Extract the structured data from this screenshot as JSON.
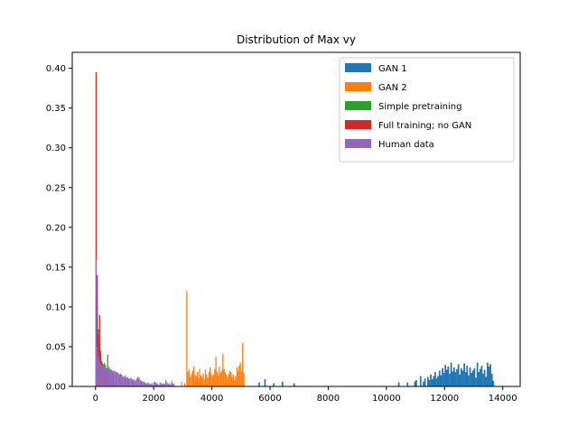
{
  "chart_data": {
    "type": "bar",
    "title": "Distribution of Max vy",
    "xlabel": "",
    "ylabel": "",
    "xlim": [
      -800,
      14600
    ],
    "ylim": [
      0,
      0.42
    ],
    "x_ticks": [
      0,
      2000,
      4000,
      6000,
      8000,
      10000,
      12000,
      14000
    ],
    "x_tick_labels": [
      "0",
      "2000",
      "4000",
      "6000",
      "8000",
      "10000",
      "12000",
      "14000"
    ],
    "y_ticks": [
      0.0,
      0.05,
      0.1,
      0.15,
      0.2,
      0.25,
      0.3,
      0.35,
      0.4
    ],
    "y_tick_labels": [
      "0.00",
      "0.05",
      "0.10",
      "0.15",
      "0.20",
      "0.25",
      "0.30",
      "0.35",
      "0.40"
    ],
    "grid": false,
    "legend_position": "top-right",
    "series": [
      {
        "name": "GAN 1",
        "color": "#1f77b4",
        "bin_width": 55,
        "x": [
          5600,
          5800,
          6100,
          6400,
          6800,
          10400,
          10700,
          10950,
          11000,
          11150,
          11250,
          11300,
          11400,
          11450,
          11500,
          11550,
          11600,
          11650,
          11700,
          11750,
          11800,
          11850,
          11900,
          11950,
          12000,
          12050,
          12100,
          12150,
          12200,
          12250,
          12300,
          12350,
          12400,
          12450,
          12500,
          12550,
          12600,
          12650,
          12700,
          12750,
          12800,
          12850,
          12900,
          12950,
          13000,
          13050,
          13100,
          13150,
          13200,
          13250,
          13300,
          13350,
          13400,
          13450,
          13500,
          13550,
          13600,
          13650
        ],
        "values": [
          0.005,
          0.009,
          0.004,
          0.006,
          0.004,
          0.005,
          0.005,
          0.006,
          0.008,
          0.013,
          0.006,
          0.01,
          0.012,
          0.008,
          0.015,
          0.009,
          0.013,
          0.018,
          0.01,
          0.013,
          0.02,
          0.014,
          0.023,
          0.017,
          0.027,
          0.021,
          0.025,
          0.016,
          0.03,
          0.019,
          0.024,
          0.018,
          0.022,
          0.028,
          0.015,
          0.023,
          0.02,
          0.029,
          0.018,
          0.026,
          0.014,
          0.024,
          0.017,
          0.02,
          0.023,
          0.011,
          0.03,
          0.018,
          0.022,
          0.026,
          0.016,
          0.021,
          0.012,
          0.03,
          0.025,
          0.028,
          0.016,
          0.007
        ]
      },
      {
        "name": "GAN 2",
        "color": "#ff7f0e",
        "bin_width": 40,
        "x": [
          2950,
          3050,
          3120,
          3160,
          3200,
          3240,
          3280,
          3320,
          3360,
          3400,
          3440,
          3480,
          3520,
          3560,
          3600,
          3640,
          3680,
          3720,
          3760,
          3800,
          3840,
          3880,
          3920,
          3960,
          4000,
          4040,
          4080,
          4120,
          4160,
          4200,
          4240,
          4280,
          4320,
          4360,
          4400,
          4440,
          4480,
          4520,
          4560,
          4600,
          4640,
          4680,
          4720,
          4760,
          4800,
          4840,
          4880,
          4920,
          4960,
          5000,
          5040,
          5080
        ],
        "values": [
          0.006,
          0.004,
          0.12,
          0.018,
          0.022,
          0.012,
          0.016,
          0.02,
          0.025,
          0.015,
          0.013,
          0.018,
          0.01,
          0.022,
          0.014,
          0.012,
          0.016,
          0.009,
          0.021,
          0.015,
          0.011,
          0.018,
          0.024,
          0.016,
          0.013,
          0.015,
          0.022,
          0.037,
          0.018,
          0.014,
          0.025,
          0.017,
          0.02,
          0.041,
          0.022,
          0.018,
          0.015,
          0.012,
          0.016,
          0.02,
          0.018,
          0.012,
          0.015,
          0.008,
          0.013,
          0.024,
          0.019,
          0.026,
          0.03,
          0.019,
          0.055,
          0.017
        ]
      },
      {
        "name": "Simple pretraining",
        "color": "#2ca02c",
        "bin_width": 40,
        "x": [
          0,
          40,
          80,
          120,
          160,
          200,
          240,
          280,
          320,
          360,
          400,
          440,
          480,
          520,
          600,
          700,
          800,
          900,
          1000,
          1100,
          1200
        ],
        "values": [
          0.11,
          0.09,
          0.072,
          0.055,
          0.045,
          0.032,
          0.028,
          0.03,
          0.027,
          0.022,
          0.04,
          0.024,
          0.021,
          0.02,
          0.018,
          0.016,
          0.015,
          0.012,
          0.01,
          0.008,
          0.006
        ]
      },
      {
        "name": "Full training; no GAN",
        "color": "#d62728",
        "bin_width": 40,
        "x": [
          0,
          40,
          80,
          120,
          160,
          200,
          240,
          280,
          320,
          360
        ],
        "values": [
          0.395,
          0.14,
          0.065,
          0.09,
          0.04,
          0.03,
          0.022,
          0.018,
          0.015,
          0.01
        ]
      },
      {
        "name": "Human data",
        "color": "#9467bd",
        "bin_width": 40,
        "x": [
          0,
          40,
          80,
          120,
          160,
          200,
          240,
          280,
          320,
          360,
          400,
          440,
          480,
          520,
          560,
          600,
          640,
          680,
          720,
          760,
          800,
          840,
          880,
          920,
          960,
          1000,
          1040,
          1080,
          1120,
          1160,
          1200,
          1240,
          1280,
          1320,
          1360,
          1400,
          1440,
          1480,
          1520,
          1560,
          1600,
          1640,
          1680,
          1720,
          1760,
          1800,
          1840,
          1880,
          1920,
          1960,
          2000,
          2040,
          2080,
          2120,
          2160,
          2200,
          2240,
          2280,
          2320,
          2360,
          2400,
          2440,
          2480,
          2520,
          2560,
          2600,
          2640,
          2680
        ],
        "values": [
          0.16,
          0.05,
          0.038,
          0.032,
          0.028,
          0.026,
          0.025,
          0.024,
          0.024,
          0.023,
          0.022,
          0.021,
          0.022,
          0.021,
          0.02,
          0.019,
          0.02,
          0.018,
          0.018,
          0.017,
          0.015,
          0.016,
          0.015,
          0.013,
          0.012,
          0.014,
          0.011,
          0.012,
          0.01,
          0.01,
          0.011,
          0.009,
          0.008,
          0.009,
          0.007,
          0.01,
          0.012,
          0.011,
          0.008,
          0.007,
          0.006,
          0.006,
          0.005,
          0.004,
          0.004,
          0.005,
          0.003,
          0.003,
          0.004,
          0.002,
          0.006,
          0.005,
          0.004,
          0.003,
          0.002,
          0.005,
          0.004,
          0.003,
          0.004,
          0.003,
          0.008,
          0.005,
          0.003,
          0.004,
          0.002,
          0.007,
          0.004,
          0.003
        ]
      }
    ]
  }
}
